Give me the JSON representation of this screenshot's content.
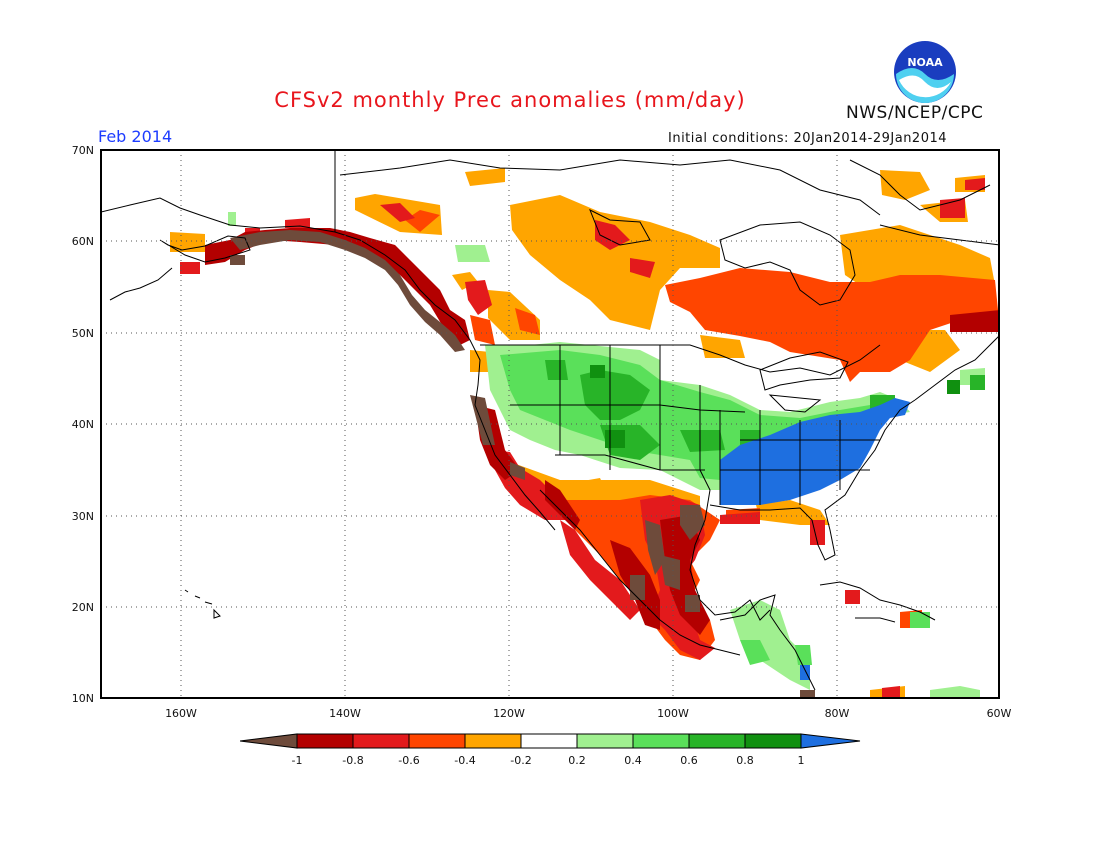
{
  "header": {
    "title": "CFSv2 monthly Prec anomalies (mm/day)",
    "period": "Feb 2014",
    "initial_conditions": "Initial conditions: 20Jan2014-29Jan2014",
    "agency": "NWS/NCEP/CPC",
    "logo_text": "NOAA"
  },
  "map": {
    "lon_range": [
      -172,
      -60
    ],
    "lat_range": [
      10,
      70
    ],
    "lat_ticks": [
      "70N",
      "60N",
      "50N",
      "40N",
      "30N",
      "20N",
      "10N"
    ],
    "lon_ticks": [
      "160W",
      "140W",
      "120W",
      "100W",
      "80W",
      "60W"
    ],
    "grid": "dotted"
  },
  "legend": {
    "ticks": [
      "-1",
      "-0.8",
      "-0.6",
      "-0.4",
      "-0.2",
      "0.2",
      "0.4",
      "0.6",
      "0.8",
      "1"
    ],
    "colors": {
      "lt_-1": "#6e4b3b",
      "-1_-0.8": "#b30000",
      "-0.8_-0.6": "#e31a1c",
      "-0.6_-0.4": "#ff4500",
      "-0.4_-0.2": "#ffa500",
      "-0.2_0.2": "#ffffff",
      "0.2_0.4": "#a0f090",
      "0.4_0.6": "#5ae05a",
      "0.6_0.8": "#28b428",
      "0.8_1": "#109010",
      "gt_1": "#1e6fe0"
    }
  }
}
